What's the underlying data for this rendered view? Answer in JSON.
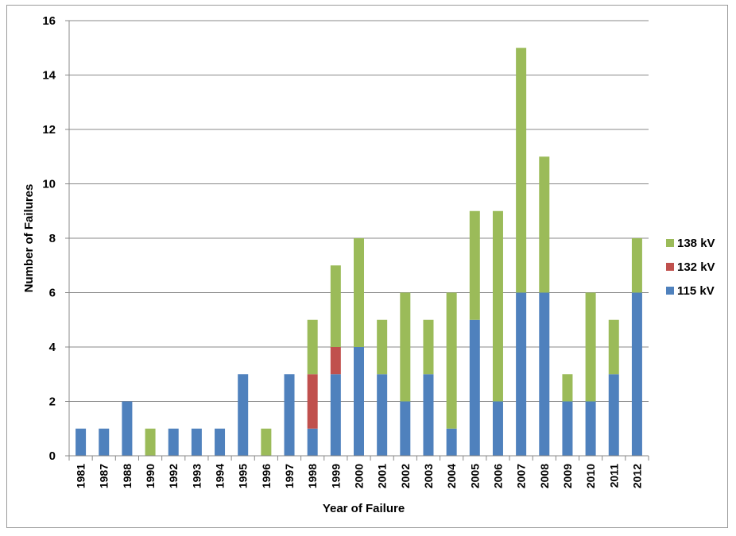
{
  "chart_data": {
    "type": "bar",
    "stacked": true,
    "xlabel": "Year of Failure",
    "ylabel": "Number of Failures",
    "ylim": [
      0,
      16
    ],
    "ytick_step": 2,
    "grid": "horizontal",
    "legend_position": "right",
    "categories": [
      "1981",
      "1987",
      "1988",
      "1990",
      "1992",
      "1993",
      "1994",
      "1995",
      "1996",
      "1997",
      "1998",
      "1999",
      "2000",
      "2001",
      "2002",
      "2003",
      "2004",
      "2005",
      "2006",
      "2007",
      "2008",
      "2009",
      "2010",
      "2011",
      "2012"
    ],
    "series": [
      {
        "name": "115 kV",
        "color": "#4F81BD",
        "values": [
          1,
          1,
          2,
          0,
          1,
          1,
          1,
          3,
          0,
          3,
          1,
          3,
          4,
          3,
          2,
          3,
          1,
          5,
          2,
          6,
          6,
          2,
          2,
          3,
          6
        ]
      },
      {
        "name": "132 kV",
        "color": "#C0504D",
        "values": [
          0,
          0,
          0,
          0,
          0,
          0,
          0,
          0,
          0,
          0,
          2,
          1,
          0,
          0,
          0,
          0,
          0,
          0,
          0,
          0,
          0,
          0,
          0,
          0,
          0
        ]
      },
      {
        "name": "138 kV",
        "color": "#9BBB59",
        "values": [
          0,
          0,
          0,
          1,
          0,
          0,
          0,
          0,
          1,
          0,
          2,
          3,
          4,
          2,
          4,
          2,
          5,
          4,
          7,
          9,
          5,
          1,
          4,
          2,
          2
        ]
      }
    ]
  }
}
